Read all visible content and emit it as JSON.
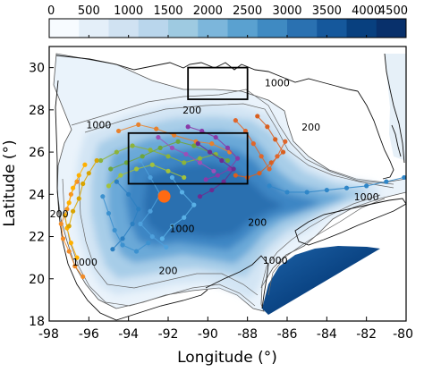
{
  "colorbar": {
    "ticks": [
      "0",
      "500",
      "1000",
      "1500",
      "2000",
      "2500",
      "3000",
      "3500",
      "4000",
      "4500"
    ],
    "range": [
      0,
      4500
    ],
    "colors": [
      "#f7fbff",
      "#e4eff9",
      "#d0e2f2",
      "#b9d6ec",
      "#9ecae1",
      "#7cb6db",
      "#5aa1d0",
      "#3f8ac2",
      "#2a71b1",
      "#15589c",
      "#08407f",
      "#08306b"
    ]
  },
  "axes": {
    "xlabel": "Longitude (°)",
    "ylabel": "Latitude (°)",
    "xticks": [
      "-98",
      "-96",
      "-94",
      "-92",
      "-90",
      "-88",
      "-86",
      "-84",
      "-82",
      "-80"
    ],
    "yticks": [
      "18",
      "20",
      "22",
      "24",
      "26",
      "28",
      "30"
    ],
    "xlim": [
      -98,
      -80
    ],
    "ylim": [
      18,
      31
    ]
  },
  "contour_labels": [
    {
      "text": "1000",
      "lon": -86.5,
      "lat": 29.2
    },
    {
      "text": "200",
      "lon": -90.8,
      "lat": 27.9
    },
    {
      "text": "1000",
      "lon": -95.5,
      "lat": 27.2
    },
    {
      "text": "200",
      "lon": -84.8,
      "lat": 27.1
    },
    {
      "text": "1000",
      "lon": -82.0,
      "lat": 23.8
    },
    {
      "text": "200",
      "lon": -97.5,
      "lat": 23.0
    },
    {
      "text": "1000",
      "lon": -91.3,
      "lat": 22.3
    },
    {
      "text": "200",
      "lon": -87.5,
      "lat": 22.6
    },
    {
      "text": "1000",
      "lon": -96.2,
      "lat": 20.7
    },
    {
      "text": "1000",
      "lon": -86.6,
      "lat": 20.8
    },
    {
      "text": "200",
      "lon": -92.0,
      "lat": 20.3
    }
  ],
  "boxes": [
    {
      "name": "north-box",
      "lon": [
        -91,
        -88
      ],
      "lat": [
        28.5,
        30
      ]
    },
    {
      "name": "central-box",
      "lon": [
        -94,
        -88
      ],
      "lat": [
        24.5,
        26.9
      ]
    }
  ],
  "release_site": {
    "lon": -92.2,
    "lat": 23.9,
    "color": "#ff6a13"
  },
  "trajectories": [
    {
      "color": "#f28c28",
      "points": [
        [
          -96.6,
          24.6
        ],
        [
          -96.9,
          24.0
        ],
        [
          -97.1,
          23.3
        ],
        [
          -97.4,
          22.6
        ],
        [
          -97.3,
          21.9
        ],
        [
          -97.0,
          21.3
        ],
        [
          -96.7,
          20.6
        ],
        [
          -96.3,
          20.1
        ]
      ]
    },
    {
      "color": "#ffb000",
      "points": [
        [
          -96.2,
          25.4
        ],
        [
          -96.5,
          24.9
        ],
        [
          -96.8,
          24.3
        ],
        [
          -97.0,
          23.6
        ],
        [
          -97.2,
          23.0
        ],
        [
          -97.1,
          22.4
        ],
        [
          -96.9,
          21.7
        ],
        [
          -96.6,
          21.0
        ]
      ]
    },
    {
      "color": "#d9a400",
      "points": [
        [
          -95.6,
          25.6
        ],
        [
          -96.0,
          25.0
        ],
        [
          -96.3,
          24.5
        ],
        [
          -96.5,
          23.8
        ],
        [
          -96.8,
          23.2
        ],
        [
          -97.0,
          22.5
        ]
      ]
    },
    {
      "color": "#e8812c",
      "points": [
        [
          -94.5,
          27.0
        ],
        [
          -93.5,
          27.3
        ],
        [
          -92.6,
          27.1
        ],
        [
          -91.7,
          26.8
        ],
        [
          -90.6,
          26.5
        ],
        [
          -89.8,
          26.4
        ],
        [
          -88.9,
          26.0
        ]
      ]
    },
    {
      "color": "#d95f1f",
      "points": [
        [
          -87.5,
          27.7
        ],
        [
          -87.0,
          27.2
        ],
        [
          -86.6,
          26.6
        ],
        [
          -86.2,
          26.0
        ],
        [
          -86.8,
          25.5
        ],
        [
          -87.4,
          25.0
        ],
        [
          -88.0,
          24.8
        ],
        [
          -88.6,
          24.9
        ]
      ]
    },
    {
      "color": "#e0662b",
      "points": [
        [
          -88.6,
          27.5
        ],
        [
          -88.1,
          27.0
        ],
        [
          -87.7,
          26.4
        ],
        [
          -87.3,
          25.8
        ],
        [
          -86.9,
          25.2
        ],
        [
          -86.5,
          25.8
        ],
        [
          -86.1,
          26.5
        ]
      ]
    },
    {
      "color": "#8db33a",
      "points": [
        [
          -95.4,
          25.6
        ],
        [
          -94.6,
          26.0
        ],
        [
          -93.8,
          26.3
        ],
        [
          -92.9,
          26.1
        ],
        [
          -92.0,
          25.8
        ],
        [
          -91.2,
          25.5
        ],
        [
          -90.4,
          25.7
        ],
        [
          -89.6,
          25.9
        ]
      ]
    },
    {
      "color": "#6ea63b",
      "points": [
        [
          -94.9,
          25.2
        ],
        [
          -94.1,
          25.5
        ],
        [
          -93.3,
          25.8
        ],
        [
          -92.4,
          26.2
        ],
        [
          -91.5,
          26.5
        ],
        [
          -90.7,
          26.3
        ],
        [
          -89.9,
          26.0
        ],
        [
          -89.0,
          25.6
        ]
      ]
    },
    {
      "color": "#a3c23c",
      "points": [
        [
          -95.0,
          24.4
        ],
        [
          -94.4,
          24.9
        ],
        [
          -93.6,
          25.2
        ],
        [
          -92.8,
          25.4
        ],
        [
          -92.0,
          25.1
        ],
        [
          -91.2,
          24.8
        ]
      ]
    },
    {
      "color": "#8a3aa8",
      "points": [
        [
          -91.0,
          27.2
        ],
        [
          -90.3,
          27.0
        ],
        [
          -89.6,
          26.7
        ],
        [
          -89.0,
          26.2
        ],
        [
          -88.5,
          25.7
        ],
        [
          -88.9,
          25.2
        ],
        [
          -89.5,
          24.9
        ],
        [
          -90.1,
          24.7
        ]
      ]
    },
    {
      "color": "#6d2c91",
      "points": [
        [
          -90.5,
          26.4
        ],
        [
          -89.9,
          26.0
        ],
        [
          -89.3,
          25.6
        ],
        [
          -88.7,
          25.2
        ],
        [
          -89.2,
          24.6
        ],
        [
          -89.8,
          24.2
        ],
        [
          -90.4,
          23.9
        ]
      ]
    },
    {
      "color": "#9c4fb8",
      "points": [
        [
          -92.5,
          26.7
        ],
        [
          -91.8,
          26.2
        ],
        [
          -91.1,
          25.9
        ],
        [
          -90.4,
          25.5
        ],
        [
          -89.7,
          25.1
        ]
      ]
    },
    {
      "color": "#2b7fc1",
      "points": [
        [
          -94.6,
          24.6
        ],
        [
          -94.0,
          24.0
        ],
        [
          -93.5,
          23.3
        ],
        [
          -93.8,
          22.6
        ],
        [
          -94.3,
          21.9
        ],
        [
          -94.8,
          21.4
        ]
      ]
    },
    {
      "color": "#4ea0dc",
      "points": [
        [
          -93.4,
          25.6
        ],
        [
          -92.9,
          24.8
        ],
        [
          -92.4,
          24.0
        ],
        [
          -92.9,
          23.2
        ],
        [
          -93.4,
          22.6
        ],
        [
          -92.8,
          22.0
        ],
        [
          -92.1,
          21.5
        ]
      ]
    },
    {
      "color": "#3c91cf",
      "points": [
        [
          -95.3,
          23.9
        ],
        [
          -95.0,
          23.1
        ],
        [
          -94.7,
          22.3
        ],
        [
          -94.3,
          21.6
        ],
        [
          -93.6,
          21.3
        ],
        [
          -93.0,
          21.7
        ]
      ]
    },
    {
      "color": "#59b0e6",
      "points": [
        [
          -91.8,
          24.8
        ],
        [
          -91.3,
          24.1
        ],
        [
          -90.7,
          23.5
        ],
        [
          -91.2,
          22.9
        ],
        [
          -91.8,
          22.5
        ],
        [
          -92.3,
          21.9
        ]
      ]
    },
    {
      "color": "#2f86c8",
      "points": [
        [
          -86.9,
          24.4
        ],
        [
          -86.0,
          24.1
        ],
        [
          -85.0,
          24.1
        ],
        [
          -84.0,
          24.2
        ],
        [
          -83.0,
          24.3
        ],
        [
          -82.0,
          24.4
        ],
        [
          -81.0,
          24.6
        ],
        [
          -80.1,
          24.8
        ]
      ]
    }
  ]
}
